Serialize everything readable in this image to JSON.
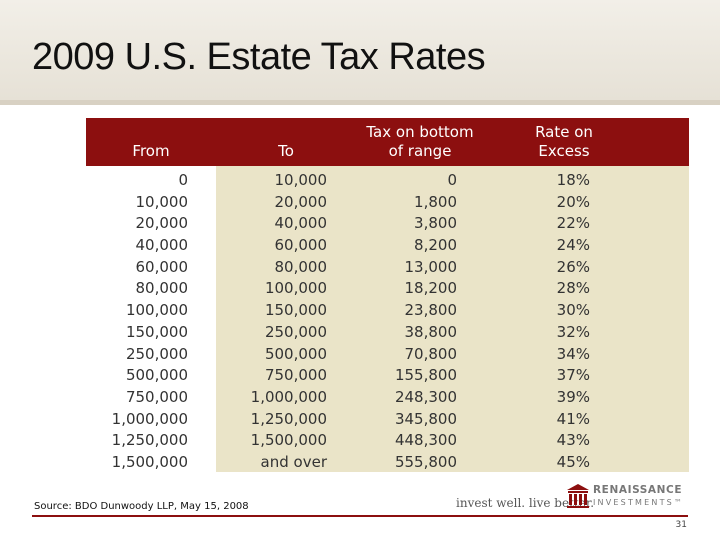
{
  "slide": {
    "title": "2009 U.S. Estate Tax Rates",
    "source": "Source: BDO Dunwoody LLP, May 15, 2008",
    "page_number": "31"
  },
  "brand": {
    "tagline": "invest well. live better.",
    "logo_name": "RENAISSANCE",
    "logo_sub": "INVESTMENTS™",
    "accent_color": "#8c0f0f",
    "panel_color": "#eae4c8"
  },
  "table": {
    "headers": {
      "from": "From",
      "to": "To",
      "tax_line1": "Tax on bottom",
      "tax_line2": "of range",
      "rate_line1": "Rate on",
      "rate_line2": "Excess"
    },
    "from": [
      "0",
      "10,000",
      "20,000",
      "40,000",
      "60,000",
      "80,000",
      "100,000",
      "150,000",
      "250,000",
      "500,000",
      "750,000",
      "1,000,000",
      "1,250,000",
      "1,500,000"
    ],
    "to": [
      "10,000",
      "20,000",
      "40,000",
      "60,000",
      "80,000",
      "100,000",
      "150,000",
      "250,000",
      "500,000",
      "750,000",
      "1,000,000",
      "1,250,000",
      "1,500,000",
      "and over"
    ],
    "tax": [
      "0",
      "1,800",
      "3,800",
      "8,200",
      "13,000",
      "18,200",
      "23,800",
      "38,800",
      "70,800",
      "155,800",
      "248,300",
      "345,800",
      "448,300",
      "555,800"
    ],
    "rate": [
      "18%",
      "20%",
      "22%",
      "24%",
      "26%",
      "28%",
      "30%",
      "32%",
      "34%",
      "37%",
      "39%",
      "41%",
      "43%",
      "45%"
    ]
  }
}
